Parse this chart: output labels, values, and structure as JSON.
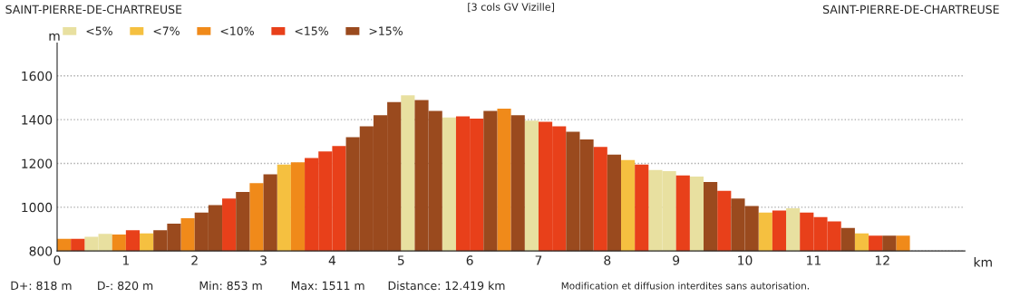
{
  "chart_data": {
    "type": "bar",
    "title": "[3 cols GV Vizille]",
    "xlabel": "km",
    "ylabel": "m",
    "x": [
      0.1,
      0.3,
      0.5,
      0.7,
      0.9,
      1.1,
      1.3,
      1.5,
      1.7,
      1.9,
      2.1,
      2.3,
      2.5,
      2.7,
      2.9,
      3.1,
      3.3,
      3.5,
      3.7,
      3.9,
      4.1,
      4.3,
      4.5,
      4.7,
      4.9,
      5.1,
      5.3,
      5.5,
      5.7,
      5.9,
      6.1,
      6.3,
      6.5,
      6.7,
      6.9,
      7.1,
      7.3,
      7.5,
      7.7,
      7.9,
      8.1,
      8.3,
      8.5,
      8.7,
      8.9,
      9.1,
      9.3,
      9.5,
      9.7,
      9.9,
      10.1,
      10.3,
      10.5,
      10.7,
      10.9,
      11.1,
      11.3,
      11.5,
      11.7,
      11.9,
      12.1,
      12.3
    ],
    "series": [
      {
        "name": "<5%",
        "color": "#e8e0a0",
        "values": [
          null,
          null,
          865,
          878,
          null,
          null,
          null,
          null,
          null,
          null,
          null,
          null,
          null,
          null,
          null,
          null,
          null,
          null,
          null,
          null,
          null,
          null,
          null,
          null,
          null,
          1511,
          null,
          null,
          1410,
          null,
          null,
          null,
          null,
          null,
          1395,
          null,
          null,
          null,
          null,
          null,
          null,
          null,
          null,
          1170,
          1165,
          null,
          1140,
          null,
          null,
          null,
          null,
          null,
          null,
          995,
          null,
          null,
          null,
          null,
          null,
          null,
          null,
          null
        ]
      },
      {
        "name": "<7%",
        "color": "#f5c040",
        "values": [
          null,
          null,
          null,
          null,
          null,
          null,
          880,
          null,
          null,
          null,
          null,
          null,
          null,
          null,
          null,
          null,
          1195,
          null,
          null,
          null,
          null,
          null,
          null,
          null,
          null,
          null,
          null,
          null,
          null,
          null,
          null,
          null,
          null,
          null,
          null,
          null,
          null,
          null,
          null,
          null,
          null,
          1215,
          null,
          null,
          null,
          null,
          null,
          null,
          null,
          null,
          null,
          975,
          null,
          null,
          null,
          null,
          null,
          null,
          880,
          null,
          null,
          null
        ]
      },
      {
        "name": "<10%",
        "color": "#f08a1a",
        "values": [
          855,
          null,
          null,
          null,
          875,
          null,
          null,
          null,
          null,
          950,
          null,
          null,
          null,
          null,
          1110,
          null,
          null,
          1205,
          null,
          null,
          null,
          null,
          null,
          null,
          null,
          null,
          null,
          null,
          null,
          null,
          null,
          null,
          1450,
          null,
          null,
          null,
          null,
          null,
          null,
          null,
          null,
          null,
          null,
          null,
          null,
          null,
          null,
          null,
          null,
          null,
          null,
          null,
          null,
          null,
          null,
          null,
          null,
          null,
          null,
          null,
          null,
          870
        ]
      },
      {
        "name": "<15%",
        "color": "#e8401a",
        "values": [
          null,
          855,
          null,
          null,
          null,
          895,
          null,
          null,
          null,
          null,
          null,
          null,
          1040,
          null,
          null,
          null,
          null,
          null,
          1225,
          1255,
          1280,
          null,
          null,
          null,
          null,
          null,
          null,
          null,
          null,
          1415,
          1405,
          null,
          null,
          null,
          null,
          1390,
          1370,
          null,
          null,
          1275,
          null,
          null,
          1195,
          null,
          null,
          1145,
          null,
          null,
          1075,
          null,
          null,
          null,
          985,
          null,
          975,
          955,
          935,
          null,
          null,
          870,
          null,
          null
        ]
      },
      {
        "name": ">15%",
        "color": "#9a4a1e",
        "values": [
          null,
          null,
          null,
          null,
          null,
          null,
          null,
          895,
          925,
          null,
          975,
          1010,
          null,
          1070,
          null,
          1150,
          null,
          null,
          null,
          null,
          null,
          1320,
          1370,
          1420,
          1480,
          null,
          1490,
          1440,
          null,
          null,
          null,
          1440,
          null,
          1420,
          null,
          null,
          null,
          1345,
          1310,
          null,
          1240,
          null,
          null,
          null,
          null,
          null,
          null,
          1115,
          null,
          1040,
          1005,
          null,
          null,
          null,
          null,
          null,
          null,
          905,
          null,
          null,
          870,
          null
        ]
      }
    ],
    "xlim": [
      0,
      13.2
    ],
    "ylim": [
      800,
      1750
    ],
    "xticks": [
      0,
      1,
      2,
      3,
      4,
      5,
      6,
      7,
      8,
      9,
      10,
      11,
      12
    ],
    "yticks": [
      800,
      1000,
      1200,
      1400,
      1600
    ],
    "grid": "y",
    "legend": "top left",
    "annotations": [
      "SAINT-PIERRE-DE-CHARTREUSE",
      "SAINT-PIERRE-DE-CHARTREUSE",
      "D+: 818 m",
      "D-: 820 m",
      "Min: 853 m",
      "Max: 1511 m",
      "Distance: 12.419 km",
      "Modification et diffusion interdites sans autorisation."
    ]
  }
}
